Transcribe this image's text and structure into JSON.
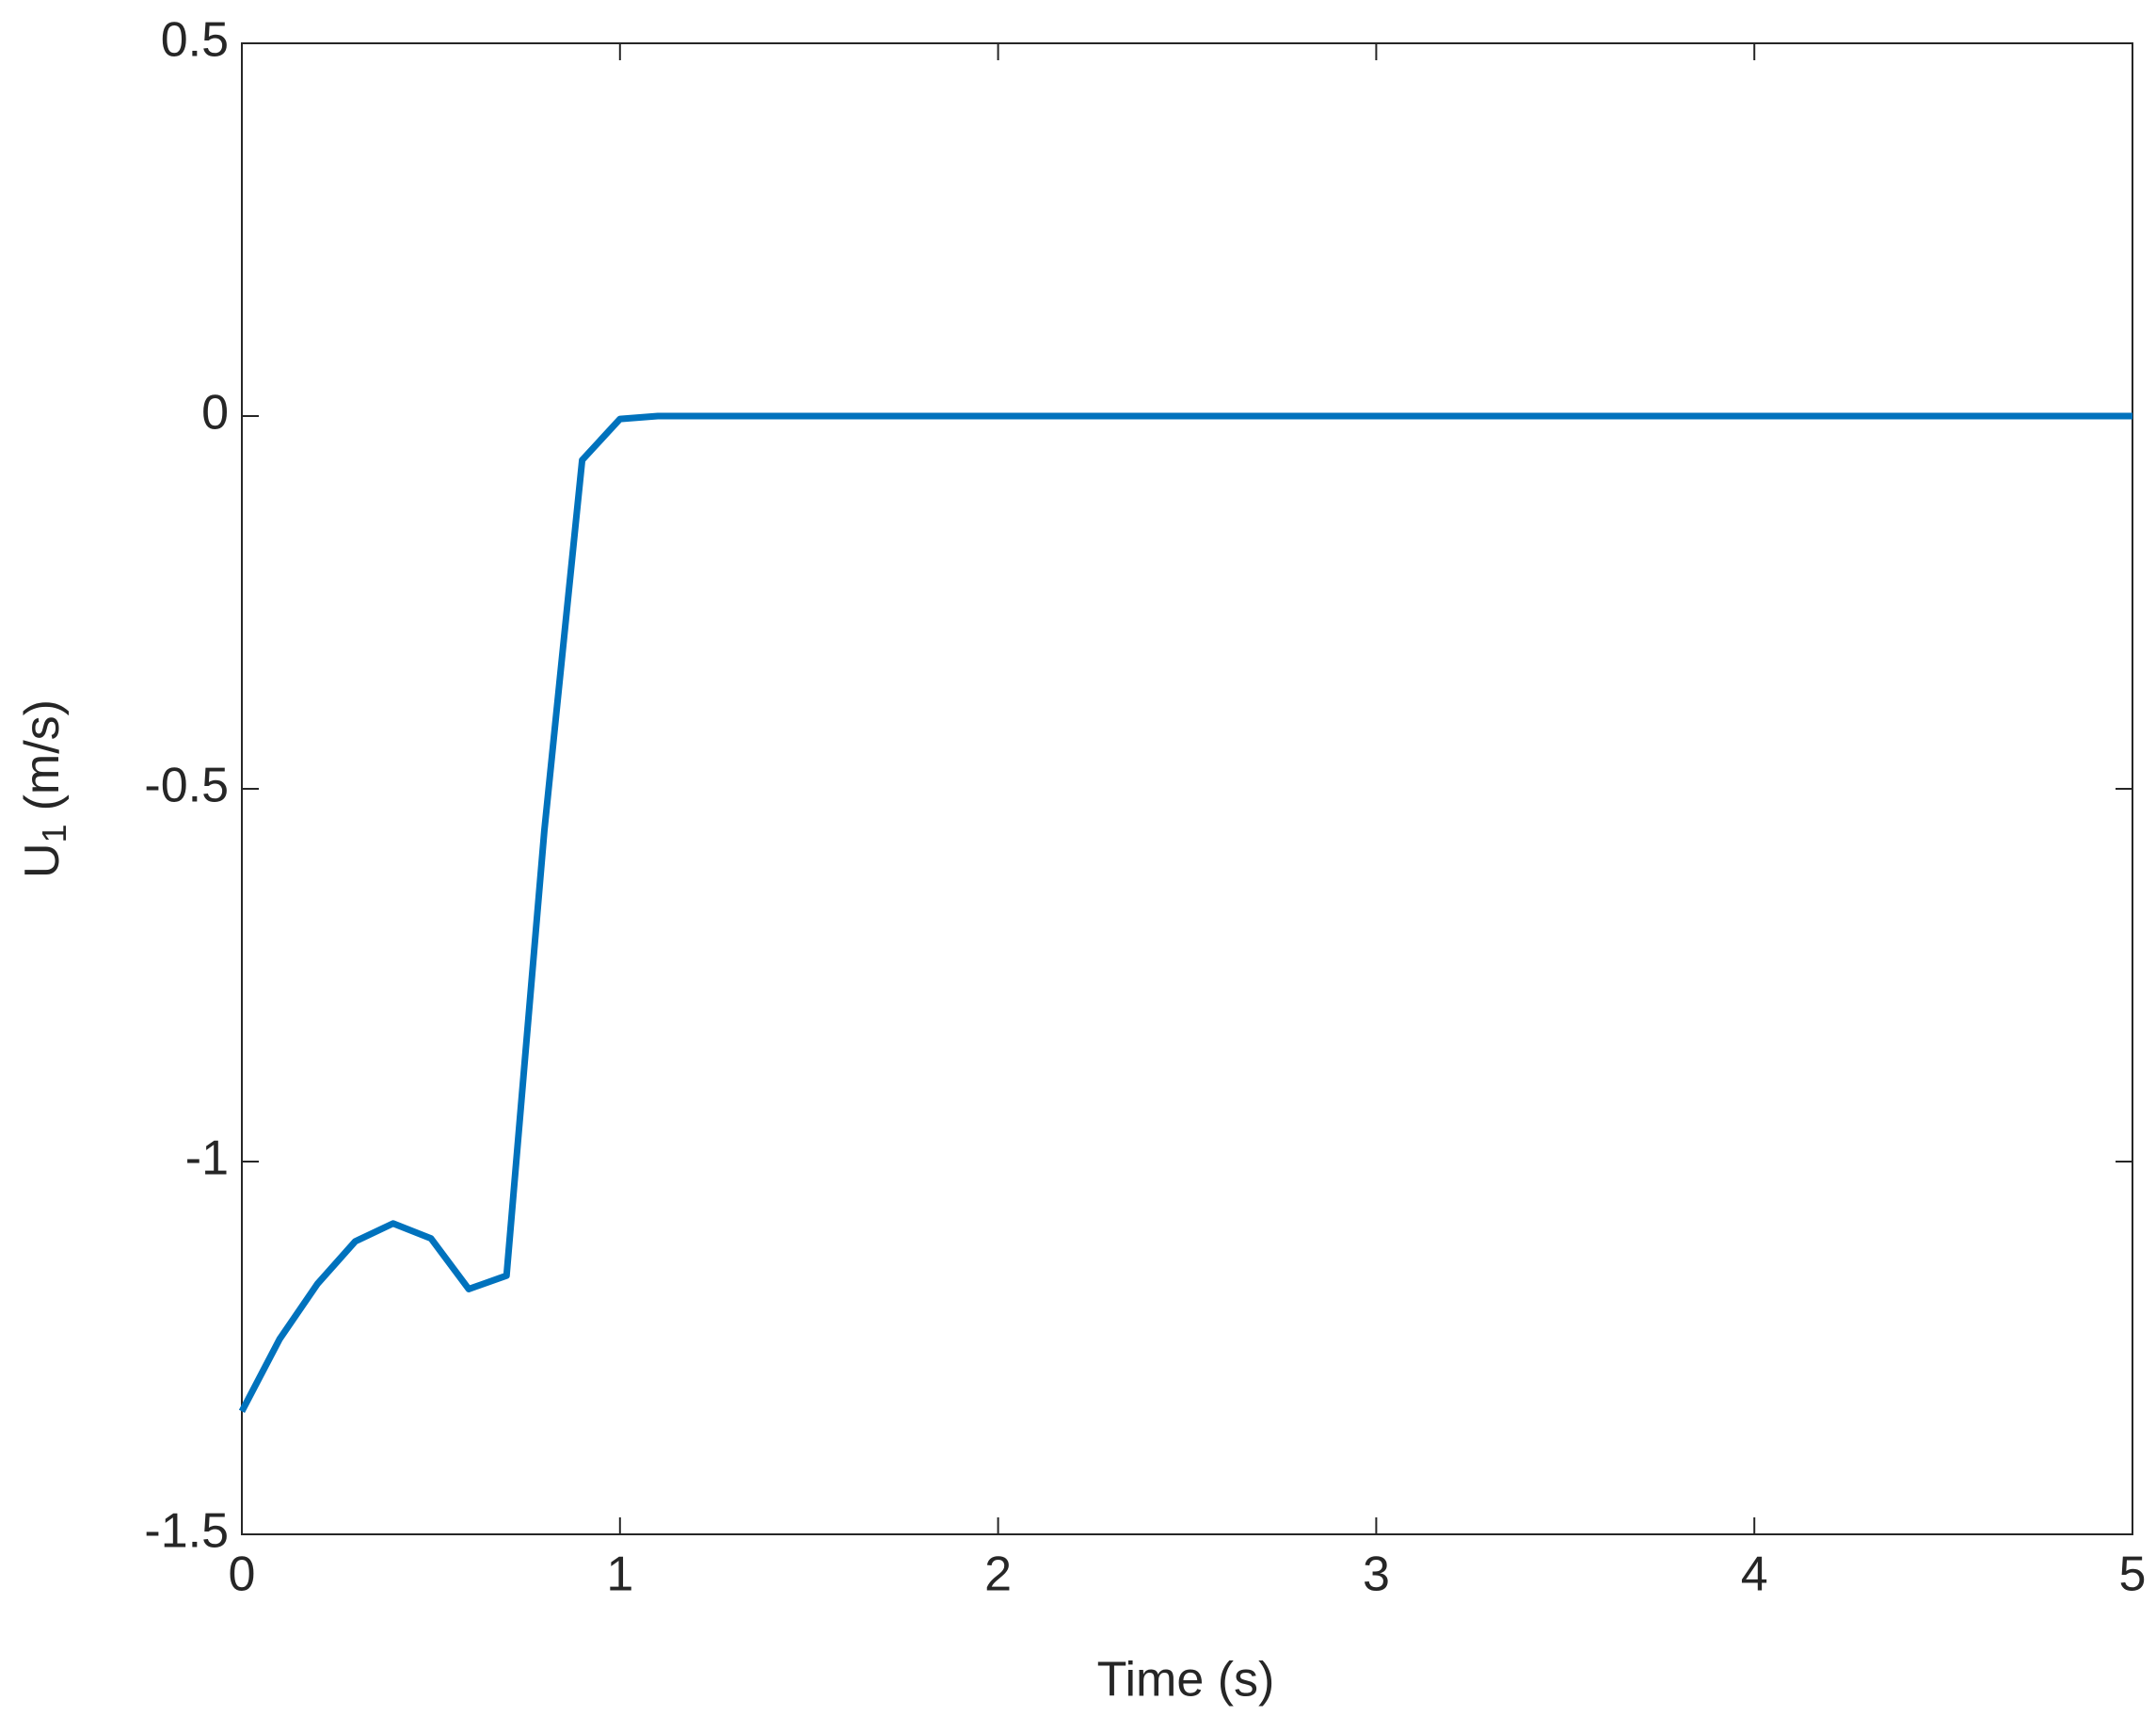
{
  "chart_data": {
    "type": "line",
    "x_label": "Time (s)",
    "y_label": {
      "main": "U",
      "subscript": "1",
      "unit": "(m/s)"
    },
    "x": [
      0,
      0.1,
      0.2,
      0.3,
      0.4,
      0.5,
      0.6,
      0.7,
      0.8,
      0.9,
      1.0,
      1.1,
      1.2,
      1.3,
      1.4,
      1.5,
      1.6,
      1.7,
      1.8,
      1.9,
      2.0,
      2.1,
      2.2,
      2.3,
      2.4,
      2.5,
      2.6,
      2.7,
      2.8,
      2.9,
      3.0,
      3.1,
      3.2,
      3.3,
      3.4,
      3.5,
      3.6,
      3.7,
      3.8,
      3.9,
      4.0,
      4.1,
      4.2,
      4.3,
      4.4,
      4.5,
      4.6,
      4.7,
      4.8,
      4.9,
      5.0
    ],
    "series": [
      {
        "color": "#0072bd",
        "values": [
          -1.335,
          -1.238,
          -1.164,
          -1.107,
          -1.083,
          -1.103,
          -1.171,
          -1.153,
          -0.556,
          -0.059,
          -0.004,
          0,
          0,
          0,
          0,
          0,
          0,
          0,
          0,
          0,
          0,
          0,
          0,
          0,
          0,
          0,
          0,
          0,
          0,
          0,
          0,
          0,
          0,
          0,
          0,
          0,
          0,
          0,
          0,
          0,
          0,
          0,
          0,
          0,
          0,
          0,
          0,
          0,
          0,
          0,
          0
        ]
      }
    ],
    "xlim": [
      0,
      5
    ],
    "xticks": [
      0,
      1,
      2,
      3,
      4,
      5
    ],
    "ylim": [
      -1.5,
      0.5
    ],
    "yticks": [
      -1.5,
      -1,
      -0.5,
      0,
      0.5
    ],
    "grid": false
  }
}
